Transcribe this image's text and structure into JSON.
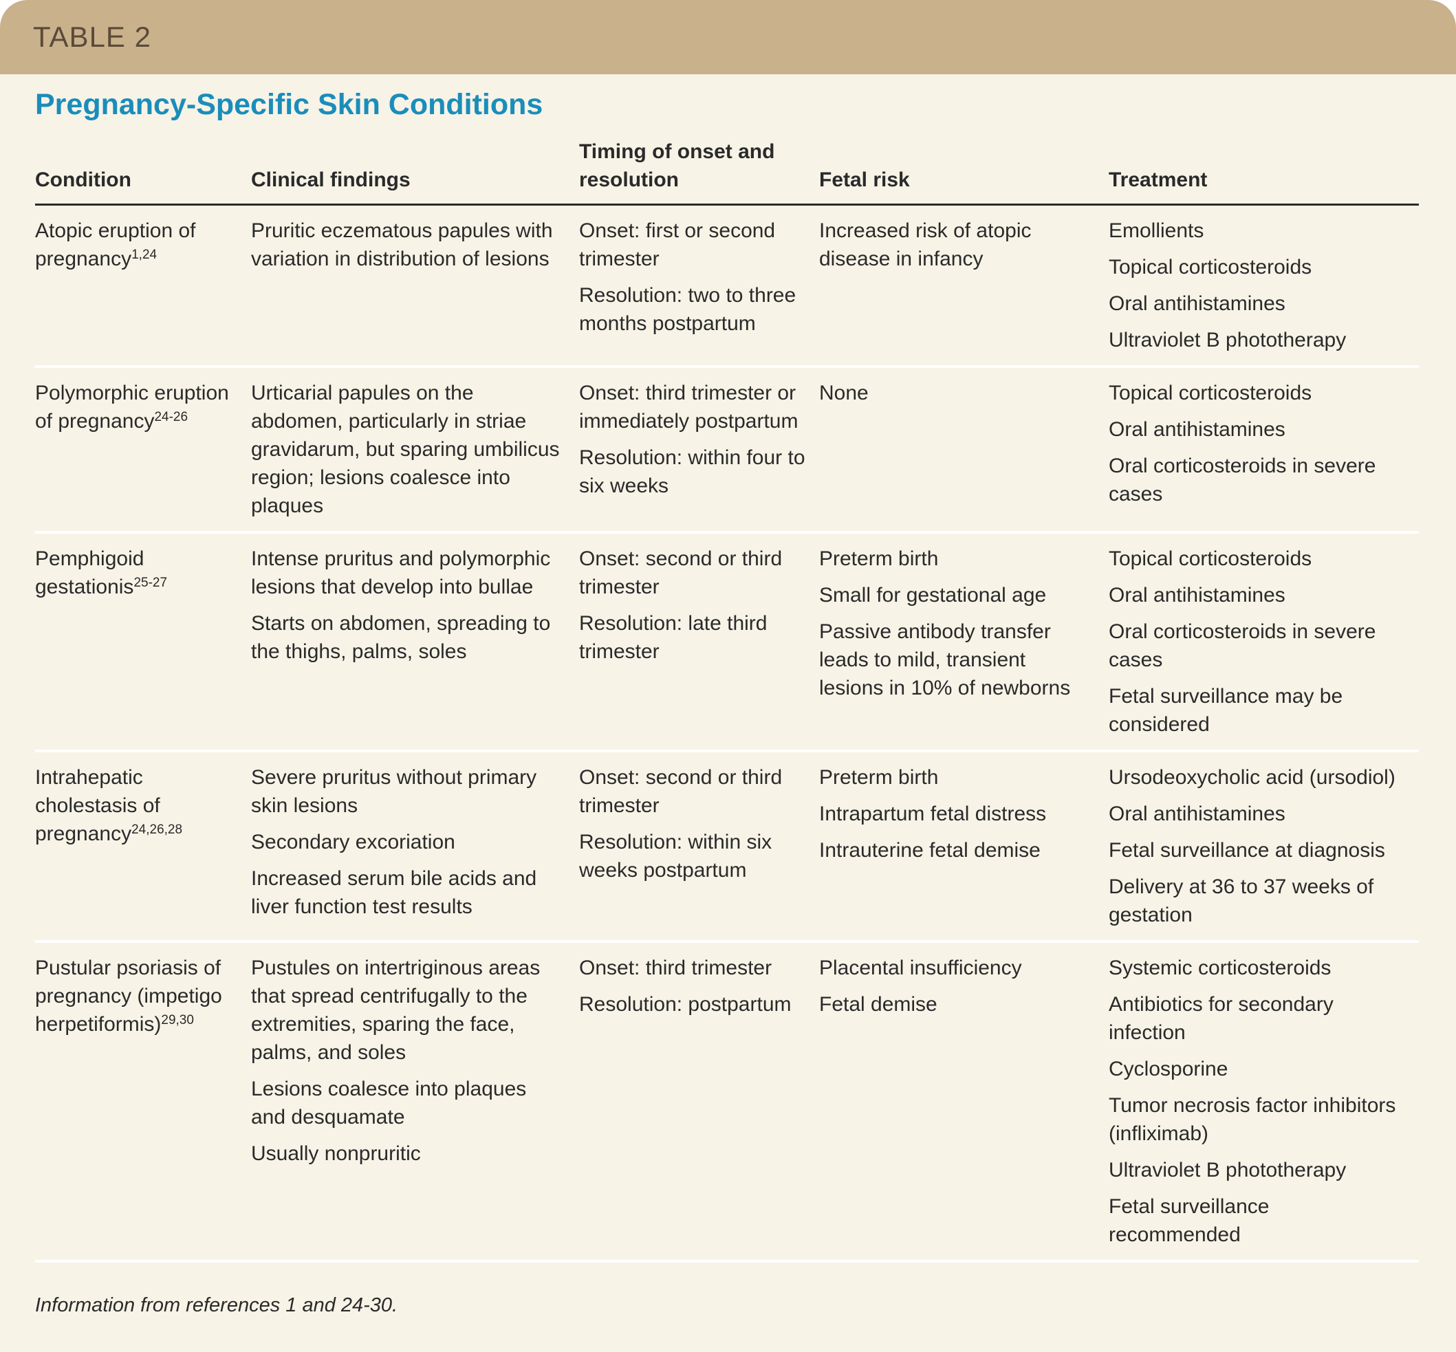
{
  "header": {
    "label": "TABLE 2"
  },
  "title": "Pregnancy-Specific Skin Conditions",
  "table": {
    "columns": [
      "Condition",
      "Clinical findings",
      "Timing of onset and resolution",
      "Fetal risk",
      "Treatment"
    ],
    "rows": [
      {
        "condition": {
          "name": "Atopic eruption of pregnancy",
          "refs": "1,24"
        },
        "findings": [
          "Pruritic eczematous papules with variation in distribution of lesions"
        ],
        "timing": [
          "Onset: first or second trimester",
          "Resolution: two to three months postpartum"
        ],
        "fetal_risk": [
          "Increased risk of atopic disease in infancy"
        ],
        "treatment": [
          "Emollients",
          "Topical corticosteroids",
          "Oral antihistamines",
          "Ultraviolet B phototherapy"
        ]
      },
      {
        "condition": {
          "name": "Polymorphic eruption of pregnancy",
          "refs": "24-26"
        },
        "findings": [
          "Urticarial papules on the abdomen, particularly in striae gravidarum, but sparing umbilicus region; lesions coalesce into plaques"
        ],
        "timing": [
          "Onset: third trimester or immediately postpartum",
          "Resolution: within four to six weeks"
        ],
        "fetal_risk": [
          "None"
        ],
        "treatment": [
          "Topical corticosteroids",
          "Oral antihistamines",
          "Oral corticosteroids in severe cases"
        ]
      },
      {
        "condition": {
          "name": "Pemphigoid gestationis",
          "refs": "25-27"
        },
        "findings": [
          "Intense pruritus and polymorphic lesions that develop into bullae",
          "Starts on abdomen, spreading to the thighs, palms, soles"
        ],
        "timing": [
          "Onset: second or third trimester",
          "Resolution: late third trimester"
        ],
        "fetal_risk": [
          "Preterm birth",
          "Small for gestational age",
          "Passive antibody transfer leads to mild, transient lesions in 10% of newborns"
        ],
        "treatment": [
          "Topical corticosteroids",
          "Oral antihistamines",
          "Oral corticosteroids in severe cases",
          "Fetal surveillance may be considered"
        ]
      },
      {
        "condition": {
          "name": "Intrahepatic cholestasis of pregnancy",
          "refs": "24,26,28"
        },
        "findings": [
          "Severe pruritus without primary skin lesions",
          "Secondary excoriation",
          "Increased serum bile acids and liver function test results"
        ],
        "timing": [
          "Onset: second or third trimester",
          "Resolution: within six weeks postpartum"
        ],
        "fetal_risk": [
          "Preterm birth",
          "Intrapartum fetal distress",
          "Intrauterine fetal demise"
        ],
        "treatment": [
          "Ursodeoxycholic acid (ursodiol)",
          "Oral antihistamines",
          "Fetal surveillance at diagnosis",
          "Delivery at 36 to 37 weeks of gestation"
        ]
      },
      {
        "condition": {
          "name": "Pustular psoriasis of pregnancy (impetigo herpetiformis)",
          "refs": "29,30"
        },
        "findings": [
          "Pustules on intertriginous areas that spread centrifugally to the extremities, sparing the face, palms, and soles",
          "Lesions coalesce into plaques and desquamate",
          "Usually nonpruritic"
        ],
        "timing": [
          "Onset: third trimester",
          "Resolution: postpartum"
        ],
        "fetal_risk": [
          "Placental insufficiency",
          "Fetal demise"
        ],
        "treatment": [
          "Systemic corticosteroids",
          "Antibiotics for secondary infection",
          "Cyclosporine",
          "Tumor necrosis factor inhibitors (infliximab)",
          "Ultraviolet B phototherapy",
          "Fetal surveillance recommended"
        ]
      }
    ]
  },
  "footnote": "Information from references 1 and 24-30."
}
